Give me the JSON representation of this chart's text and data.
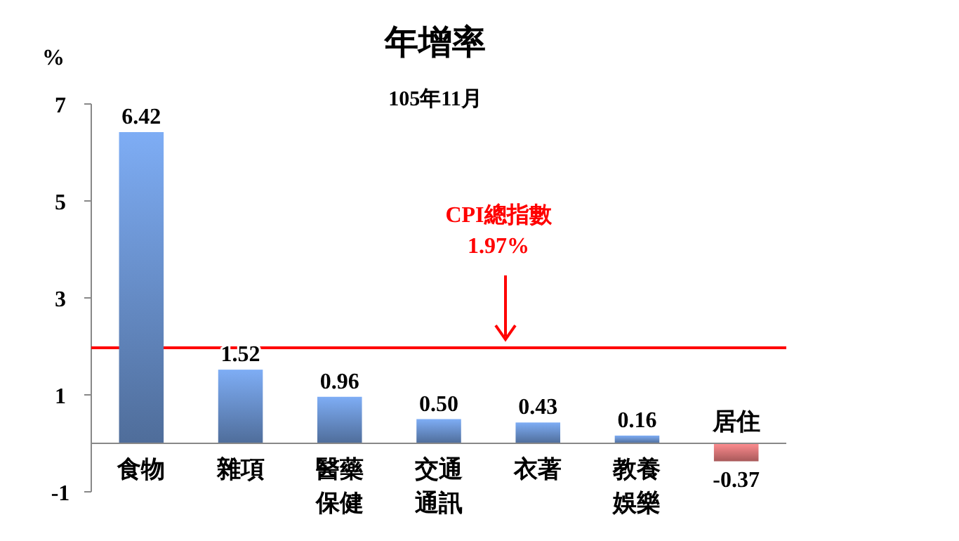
{
  "chart_data": {
    "type": "bar",
    "title": "年增率",
    "subtitle": "105年11月",
    "ylabel": "%",
    "categories": [
      "食物",
      "雜項",
      "醫藥保健",
      "交通通訊",
      "衣著",
      "教養娛樂",
      "居住"
    ],
    "values": [
      6.42,
      1.52,
      0.96,
      0.5,
      0.43,
      0.16,
      -0.37
    ],
    "colors": [
      "#5f82b8",
      "#5f82b8",
      "#5f82b8",
      "#5f82b8",
      "#5f82b8",
      "#5f82b8",
      "#c96a6c"
    ],
    "value_labels": [
      "6.42",
      "1.52",
      "0.96",
      "0.50",
      "0.43",
      "0.16",
      "-0.37"
    ],
    "ylim": [
      -1,
      7
    ],
    "yticks": [
      -1,
      1,
      3,
      5,
      7
    ],
    "grid": false,
    "ref_lines": [
      {
        "axis": "y",
        "value": 1.97,
        "label": "CPI總指數\n1.97%",
        "color": "#ff0000"
      }
    ]
  }
}
